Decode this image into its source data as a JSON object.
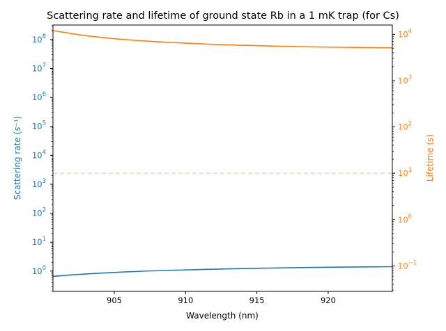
{
  "chart_data": {
    "type": "line",
    "title": "Scattering rate and lifetime of ground state Rb in a 1 mK trap (for Cs)",
    "xlabel": "Wavelength (nm)",
    "xlim": [
      900.7,
      924.5
    ],
    "xticks": [
      905,
      910,
      915,
      920
    ],
    "left_axis": {
      "label": "Scattering rate (s⁻¹)",
      "scale": "log",
      "ylim_exp": [
        -0.7,
        8.5
      ],
      "tick_exps": [
        0,
        1,
        2,
        3,
        4,
        5,
        6,
        7,
        8
      ],
      "color": "#1f77b4"
    },
    "right_axis": {
      "label": "Lifetime (s)",
      "scale": "log",
      "ylim_exp": [
        -1.55,
        4.2
      ],
      "tick_exps": [
        -1,
        0,
        1,
        2,
        3,
        4
      ],
      "color": "#ff7f0e"
    },
    "series": [
      {
        "axis": "left",
        "color": "#1f77b4",
        "x": [
          900.7,
          903,
          905,
          907,
          910,
          913,
          915,
          918,
          920,
          922,
          924.5
        ],
        "y": [
          0.66,
          0.8,
          0.9,
          1.0,
          1.1,
          1.2,
          1.25,
          1.32,
          1.36,
          1.39,
          1.42
        ]
      },
      {
        "axis": "right",
        "color": "#ff7f0e",
        "x": [
          900.7,
          902,
          903,
          905,
          907,
          910,
          913,
          915,
          918,
          920,
          922,
          924.5
        ],
        "y": [
          12000,
          10400,
          9300,
          8000,
          7200,
          6400,
          5900,
          5700,
          5400,
          5300,
          5200,
          5100
        ]
      }
    ],
    "reference_line": {
      "axis": "right",
      "y": 10,
      "style": "dashed",
      "color": "#ffd3a8"
    }
  }
}
